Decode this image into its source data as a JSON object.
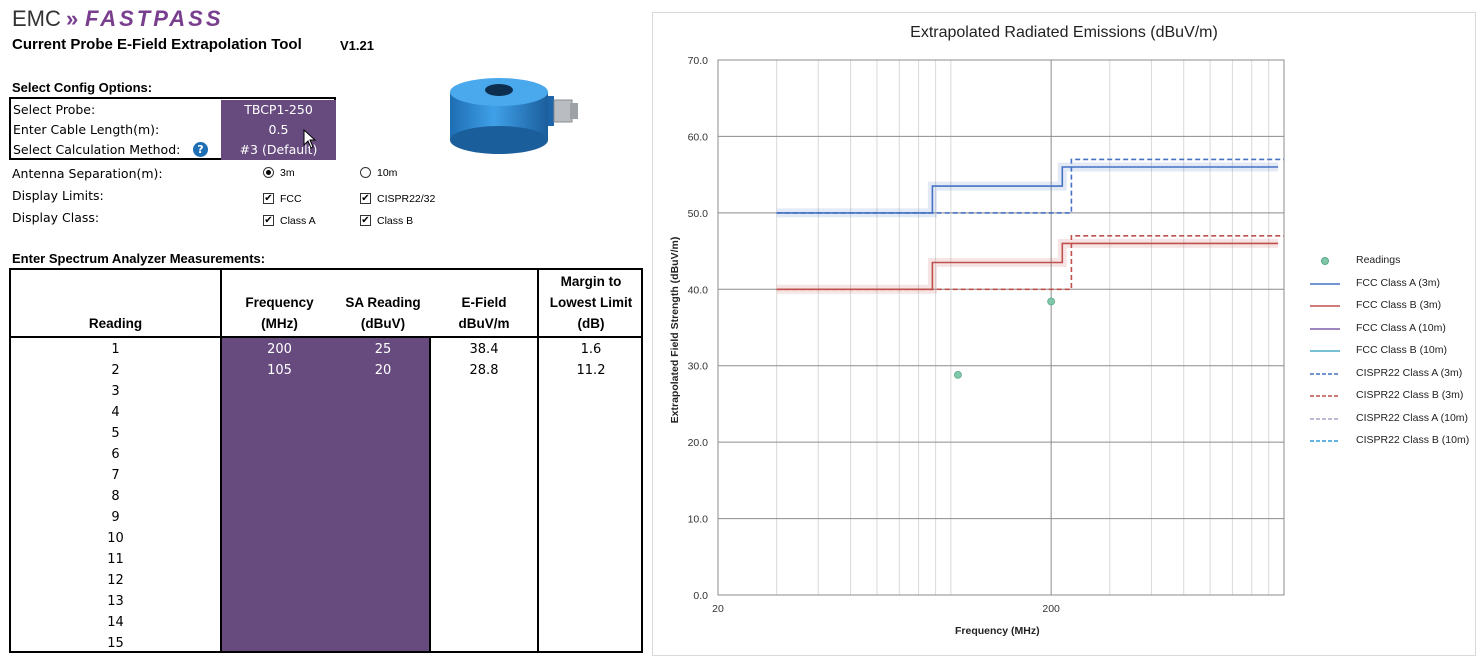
{
  "header": {
    "logo_left": "EMC",
    "logo_chevrons": "»",
    "logo_right": "FASTPASS",
    "title": "Current Probe E-Field Extrapolation Tool",
    "version": "V1.21"
  },
  "config": {
    "section_title": "Select Config Options:",
    "probe_label": "Select Probe:",
    "probe_value": "TBCP1-250",
    "cable_label": "Enter Cable Length(m):",
    "cable_value": "0.5",
    "method_label": "Select Calculation Method:",
    "method_value": "#3 (Default)",
    "help_glyph": "?",
    "antenna_label": "Antenna Separation(m):",
    "antenna_opt1": "3m",
    "antenna_opt2": "10m",
    "antenna_selected": "3m",
    "limits_label": "Display Limits:",
    "limits_opt1": "FCC",
    "limits_opt2": "CISPR22/32",
    "class_label": "Display Class:",
    "class_opt1": "Class A",
    "class_opt2": "Class B",
    "check_glyph": "✔"
  },
  "measurements": {
    "section_title": "Enter Spectrum Analyzer Measurements:",
    "headers": {
      "reading": "Reading",
      "freq_1": "Frequency",
      "freq_2": "(MHz)",
      "sa_1": "SA Reading",
      "sa_2": "(dBuV)",
      "ef_1": "E-Field",
      "ef_2": "dBuV/m",
      "m_1": "Margin to",
      "m_2": "Lowest Limit",
      "m_3": "(dB)"
    },
    "rows": [
      {
        "n": "1",
        "freq": "200",
        "sa": "25",
        "ef": "38.4",
        "margin": "1.6"
      },
      {
        "n": "2",
        "freq": "105",
        "sa": "20",
        "ef": "28.8",
        "margin": "11.2"
      },
      {
        "n": "3",
        "freq": "",
        "sa": "",
        "ef": "",
        "margin": ""
      },
      {
        "n": "4",
        "freq": "",
        "sa": "",
        "ef": "",
        "margin": ""
      },
      {
        "n": "5",
        "freq": "",
        "sa": "",
        "ef": "",
        "margin": ""
      },
      {
        "n": "6",
        "freq": "",
        "sa": "",
        "ef": "",
        "margin": ""
      },
      {
        "n": "7",
        "freq": "",
        "sa": "",
        "ef": "",
        "margin": ""
      },
      {
        "n": "8",
        "freq": "",
        "sa": "",
        "ef": "",
        "margin": ""
      },
      {
        "n": "9",
        "freq": "",
        "sa": "",
        "ef": "",
        "margin": ""
      },
      {
        "n": "10",
        "freq": "",
        "sa": "",
        "ef": "",
        "margin": ""
      },
      {
        "n": "11",
        "freq": "",
        "sa": "",
        "ef": "",
        "margin": ""
      },
      {
        "n": "12",
        "freq": "",
        "sa": "",
        "ef": "",
        "margin": ""
      },
      {
        "n": "13",
        "freq": "",
        "sa": "",
        "ef": "",
        "margin": ""
      },
      {
        "n": "14",
        "freq": "",
        "sa": "",
        "ef": "",
        "margin": ""
      },
      {
        "n": "15",
        "freq": "",
        "sa": "",
        "ef": "",
        "margin": ""
      }
    ]
  },
  "colors": {
    "brand_purple": "#7a3e8e",
    "input_purple": "#674b7f",
    "fcc_a": "#4472c4",
    "fcc_b": "#c0504d",
    "readings": "#7fc8a9"
  },
  "chart_data": {
    "type": "line",
    "title": "Extrapolated Radiated Emissions (dBuV/m)",
    "xlabel": "Frequency (MHz)",
    "ylabel": "Extrapolated Field Strength (dBuV/m)",
    "x_scale": "log",
    "xlim": [
      20,
      1000
    ],
    "ylim": [
      0,
      70
    ],
    "y_ticks": [
      "0.0",
      "10.0",
      "20.0",
      "30.0",
      "40.0",
      "50.0",
      "60.0",
      "70.0"
    ],
    "x_tick_labels": [
      "20",
      "200"
    ],
    "grid": true,
    "legend_position": "right",
    "series": [
      {
        "name": "Readings",
        "kind": "scatter",
        "color": "#7fc8a9",
        "points": [
          [
            200,
            38.4
          ],
          [
            105,
            28.8
          ]
        ]
      },
      {
        "name": "FCC Class A (3m)",
        "kind": "step",
        "color": "#4472c4",
        "dash": "solid",
        "points": [
          [
            30,
            50.0
          ],
          [
            88,
            50.0
          ],
          [
            88,
            53.5
          ],
          [
            216,
            53.5
          ],
          [
            216,
            56.0
          ],
          [
            960,
            56.0
          ]
        ]
      },
      {
        "name": "FCC Class B (3m)",
        "kind": "step",
        "color": "#c0504d",
        "dash": "solid",
        "points": [
          [
            30,
            40.0
          ],
          [
            88,
            40.0
          ],
          [
            88,
            43.5
          ],
          [
            216,
            43.5
          ],
          [
            216,
            46.0
          ],
          [
            960,
            46.0
          ]
        ]
      },
      {
        "name": "FCC Class A (10m)",
        "kind": "step",
        "color": "#7f5fa8",
        "dash": "solid",
        "points": []
      },
      {
        "name": "FCC Class B (10m)",
        "kind": "step",
        "color": "#4bacc6",
        "dash": "solid",
        "points": []
      },
      {
        "name": "CISPR22 Class A (3m)",
        "kind": "step",
        "color": "#4472c4",
        "dash": "dashed",
        "points": [
          [
            30,
            50.0
          ],
          [
            230,
            50.0
          ],
          [
            230,
            57.0
          ],
          [
            1000,
            57.0
          ]
        ]
      },
      {
        "name": "CISPR22 Class B (3m)",
        "kind": "step",
        "color": "#c0504d",
        "dash": "dashed",
        "points": [
          [
            30,
            40.0
          ],
          [
            230,
            40.0
          ],
          [
            230,
            47.0
          ],
          [
            1000,
            47.0
          ]
        ]
      },
      {
        "name": "CISPR22 Class A (10m)",
        "kind": "step",
        "color": "#a5a5c8",
        "dash": "dashed",
        "points": []
      },
      {
        "name": "CISPR22 Class B (10m)",
        "kind": "step",
        "color": "#2e9bd6",
        "dash": "dashed",
        "points": []
      }
    ]
  }
}
